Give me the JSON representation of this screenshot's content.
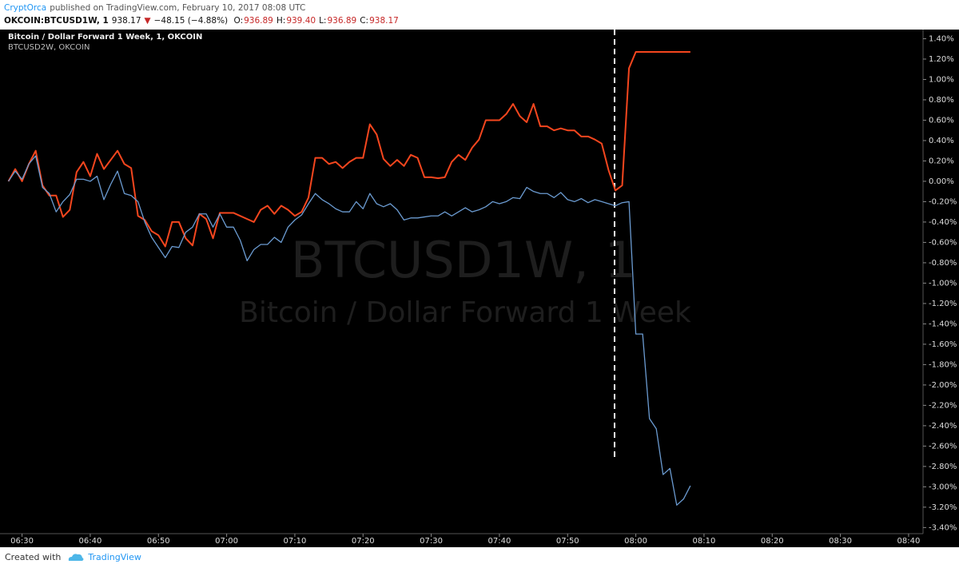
{
  "header": {
    "publisher": "CryptOrca",
    "published": "published on TradingView.com, February 10, 2017 08:08 UTC",
    "symbol": "OKCOIN:BTCUSD1W, 1",
    "last": "938.17",
    "arrow": "▼",
    "change": "−48.15 (−4.88%)",
    "ohlc": [
      {
        "label": "O:",
        "value": "936.89"
      },
      {
        "label": "H:",
        "value": "939.40"
      },
      {
        "label": "L:",
        "value": "936.89"
      },
      {
        "label": "C:",
        "value": "938.17"
      }
    ]
  },
  "footer": {
    "created": "Created with",
    "brand": "TradingView"
  },
  "chart_data": {
    "type": "line",
    "watermark_title": "BTCUSD1W, 1",
    "watermark_subtitle": "Bitcoin / Dollar Forward 1 Week",
    "x": [
      "06:28",
      "06:29",
      "06:30",
      "06:31",
      "06:32",
      "06:33",
      "06:34",
      "06:35",
      "06:36",
      "06:37",
      "06:38",
      "06:39",
      "06:40",
      "06:41",
      "06:42",
      "06:43",
      "06:44",
      "06:45",
      "06:46",
      "06:47",
      "06:48",
      "06:49",
      "06:50",
      "06:51",
      "06:52",
      "06:53",
      "06:54",
      "06:55",
      "06:56",
      "06:57",
      "06:58",
      "06:59",
      "07:00",
      "07:01",
      "07:02",
      "07:03",
      "07:04",
      "07:05",
      "07:06",
      "07:07",
      "07:08",
      "07:09",
      "07:10",
      "07:11",
      "07:12",
      "07:13",
      "07:14",
      "07:15",
      "07:16",
      "07:17",
      "07:18",
      "07:19",
      "07:20",
      "07:21",
      "07:22",
      "07:23",
      "07:24",
      "07:25",
      "07:26",
      "07:27",
      "07:28",
      "07:29",
      "07:30",
      "07:31",
      "07:32",
      "07:33",
      "07:34",
      "07:35",
      "07:36",
      "07:37",
      "07:38",
      "07:39",
      "07:40",
      "07:41",
      "07:42",
      "07:43",
      "07:44",
      "07:45",
      "07:46",
      "07:47",
      "07:48",
      "07:49",
      "07:50",
      "07:51",
      "07:52",
      "07:53",
      "07:54",
      "07:55",
      "07:56",
      "07:57",
      "07:58",
      "07:59",
      "08:00",
      "08:01",
      "08:02",
      "08:03",
      "08:04",
      "08:05",
      "08:06",
      "08:07",
      "08:08"
    ],
    "series": [
      {
        "name": "Bitcoin / Dollar Forward 1 Week, 1, OKCOIN",
        "color": "#f5461e",
        "values": [
          0.0,
          0.12,
          0.0,
          0.17,
          0.3,
          -0.04,
          -0.14,
          -0.14,
          -0.35,
          -0.28,
          0.09,
          0.19,
          0.05,
          0.27,
          0.12,
          0.21,
          0.3,
          0.17,
          0.13,
          -0.34,
          -0.38,
          -0.49,
          -0.53,
          -0.64,
          -0.4,
          -0.4,
          -0.56,
          -0.63,
          -0.32,
          -0.37,
          -0.56,
          -0.31,
          -0.31,
          -0.31,
          -0.34,
          -0.37,
          -0.4,
          -0.28,
          -0.24,
          -0.32,
          -0.24,
          -0.28,
          -0.34,
          -0.3,
          -0.16,
          0.23,
          0.23,
          0.17,
          0.19,
          0.13,
          0.19,
          0.23,
          0.23,
          0.56,
          0.46,
          0.22,
          0.15,
          0.21,
          0.15,
          0.26,
          0.23,
          0.04,
          0.04,
          0.03,
          0.04,
          0.19,
          0.26,
          0.21,
          0.33,
          0.41,
          0.6,
          0.6,
          0.6,
          0.66,
          0.76,
          0.64,
          0.58,
          0.76,
          0.54,
          0.54,
          0.5,
          0.52,
          0.5,
          0.5,
          0.44,
          0.44,
          0.41,
          0.37,
          0.11,
          -0.09,
          -0.04,
          1.11,
          1.27,
          1.27,
          1.27,
          1.27,
          1.27,
          1.27,
          1.27,
          1.27,
          1.27
        ]
      },
      {
        "name": "BTCUSD2W, OKCOIN",
        "color": "#6b9bd1",
        "values": [
          0.0,
          0.1,
          0.02,
          0.17,
          0.25,
          -0.06,
          -0.12,
          -0.3,
          -0.2,
          -0.13,
          0.02,
          0.02,
          0.0,
          0.05,
          -0.18,
          -0.03,
          0.1,
          -0.12,
          -0.14,
          -0.2,
          -0.4,
          -0.55,
          -0.65,
          -0.75,
          -0.64,
          -0.65,
          -0.5,
          -0.45,
          -0.32,
          -0.32,
          -0.45,
          -0.32,
          -0.45,
          -0.45,
          -0.58,
          -0.78,
          -0.67,
          -0.62,
          -0.62,
          -0.55,
          -0.6,
          -0.45,
          -0.38,
          -0.33,
          -0.22,
          -0.12,
          -0.18,
          -0.22,
          -0.27,
          -0.3,
          -0.3,
          -0.2,
          -0.27,
          -0.12,
          -0.22,
          -0.25,
          -0.22,
          -0.28,
          -0.38,
          -0.36,
          -0.36,
          -0.35,
          -0.34,
          -0.34,
          -0.3,
          -0.34,
          -0.3,
          -0.26,
          -0.3,
          -0.28,
          -0.25,
          -0.2,
          -0.22,
          -0.2,
          -0.16,
          -0.17,
          -0.06,
          -0.1,
          -0.12,
          -0.12,
          -0.16,
          -0.11,
          -0.18,
          -0.2,
          -0.17,
          -0.21,
          -0.18,
          -0.2,
          -0.22,
          -0.24,
          -0.21,
          -0.2,
          -1.5,
          -1.5,
          -2.33,
          -2.43,
          -2.88,
          -2.82,
          -3.18,
          -3.12,
          -2.99
        ]
      }
    ],
    "xlim": [
      "06:27",
      "08:42"
    ],
    "xticks": [
      "06:30",
      "06:40",
      "06:50",
      "07:00",
      "07:10",
      "07:20",
      "07:30",
      "07:40",
      "07:50",
      "08:00",
      "08:10",
      "08:20",
      "08:30",
      "08:40"
    ],
    "ylim": [
      -3.46,
      1.49
    ],
    "yticks": [
      {
        "value": 1.4,
        "label": "1.40%"
      },
      {
        "value": 1.2,
        "label": "1.20%"
      },
      {
        "value": 1.0,
        "label": "1.00%"
      },
      {
        "value": 0.8,
        "label": "0.80%"
      },
      {
        "value": 0.6,
        "label": "0.60%"
      },
      {
        "value": 0.4,
        "label": "0.40%"
      },
      {
        "value": 0.2,
        "label": "0.20%"
      },
      {
        "value": 0,
        "label": "0.00%"
      },
      {
        "value": -0.2,
        "label": "-0.20%"
      },
      {
        "value": -0.4,
        "label": "-0.40%"
      },
      {
        "value": -0.6,
        "label": "-0.60%"
      },
      {
        "value": -0.8,
        "label": "-0.80%"
      },
      {
        "value": -1.0,
        "label": "-1.00%"
      },
      {
        "value": -1.2,
        "label": "-1.20%"
      },
      {
        "value": -1.4,
        "label": "-1.40%"
      },
      {
        "value": -1.6,
        "label": "-1.60%"
      },
      {
        "value": -1.8,
        "label": "-1.80%"
      },
      {
        "value": -2.0,
        "label": "-2.00%"
      },
      {
        "value": -2.2,
        "label": "-2.20%"
      },
      {
        "value": -2.4,
        "label": "-2.40%"
      },
      {
        "value": -2.6,
        "label": "-2.60%"
      },
      {
        "value": -2.8,
        "label": "-2.80%"
      },
      {
        "value": -3.0,
        "label": "-3.00%"
      },
      {
        "value": -3.2,
        "label": "-3.20%"
      },
      {
        "value": -3.4,
        "label": "-3.40%"
      }
    ],
    "grid": false
  }
}
